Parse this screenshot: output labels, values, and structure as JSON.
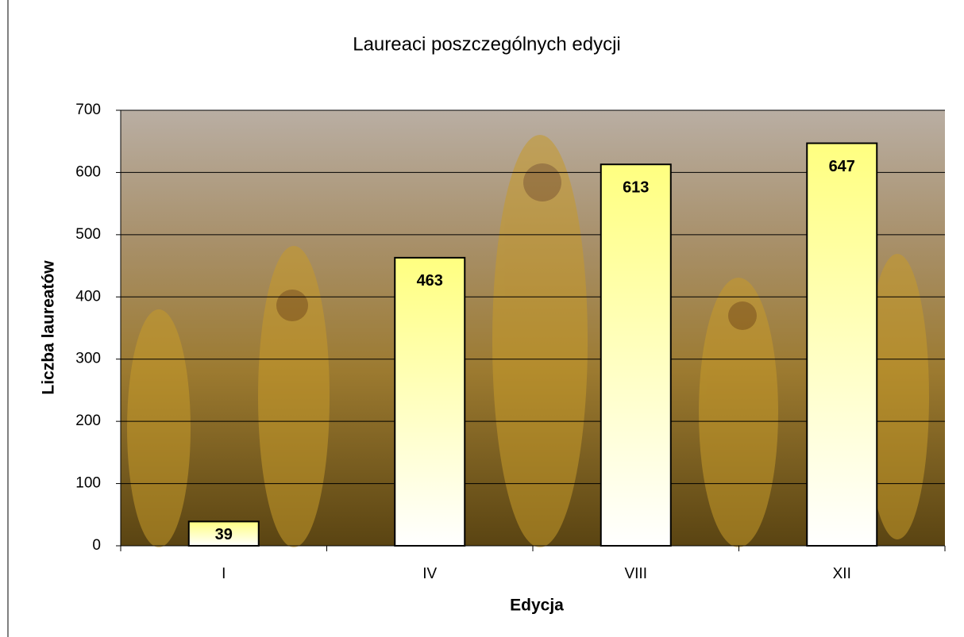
{
  "chart_data": {
    "type": "bar",
    "title": "Laureaci poszczególnych edycji",
    "x_label": "Edycja",
    "y_label": "Liczba laureatów",
    "categories": [
      "I",
      "IV",
      "VIII",
      "XII"
    ],
    "values": [
      39,
      463,
      613,
      647
    ],
    "color": "#ffff80",
    "ylim": [
      0,
      700
    ],
    "yticks": [
      0,
      100,
      200,
      300,
      400,
      500,
      600,
      700
    ],
    "grid": true
  }
}
